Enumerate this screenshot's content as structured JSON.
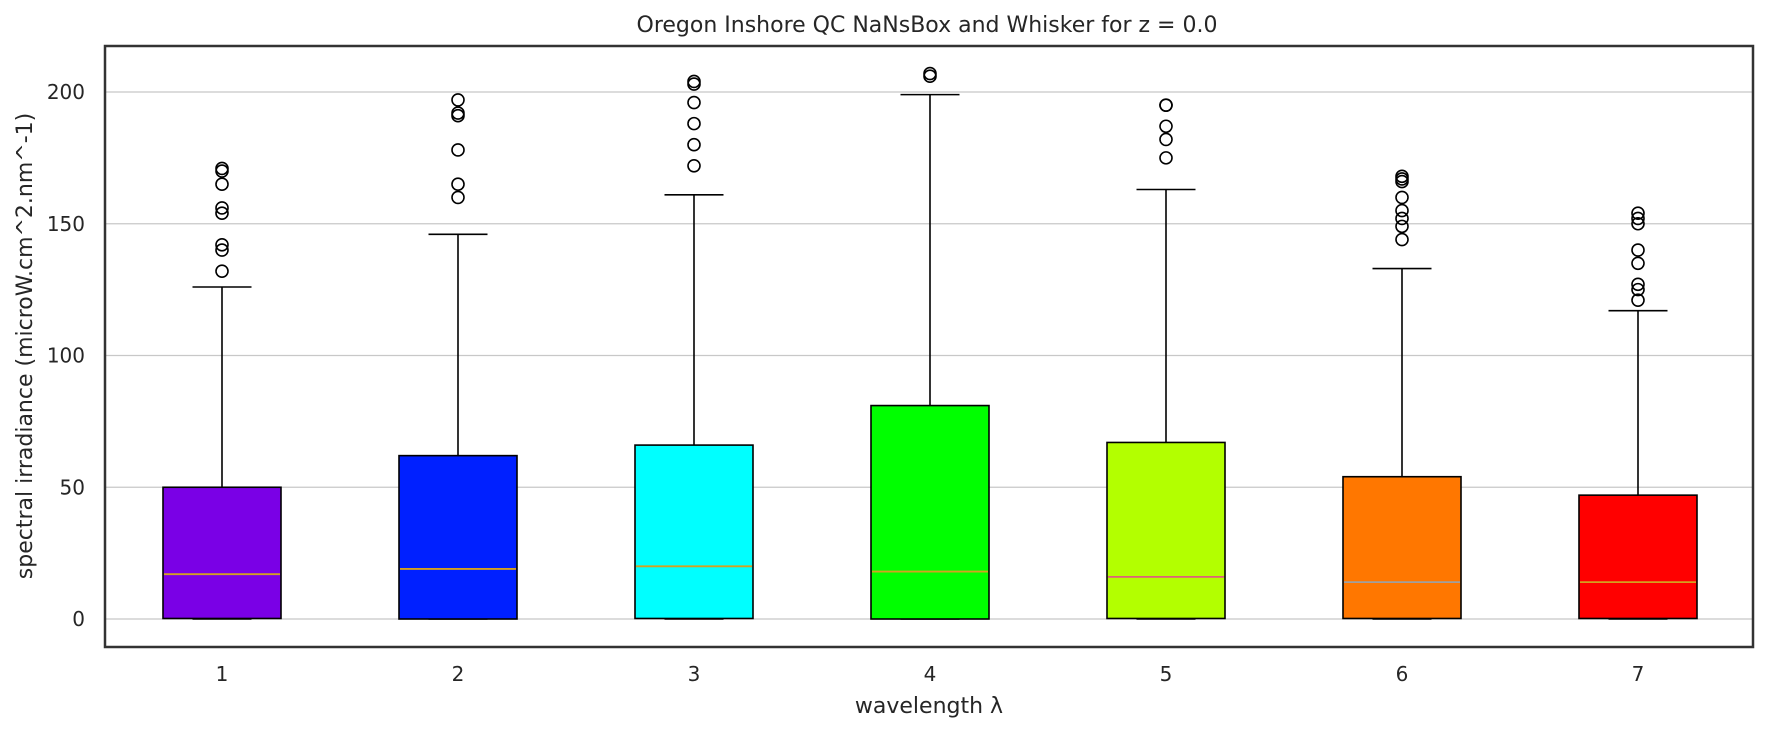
{
  "chart_data": {
    "type": "box",
    "title": "Oregon Inshore QC NaNsBox and Whisker for z = 0.0",
    "xlabel": "wavelength λ",
    "ylabel": "spectral irradiance (microW.cm^2.nm^-1)",
    "ylim": [
      -10,
      217
    ],
    "yticks": [
      0,
      50,
      100,
      150,
      200
    ],
    "ytick_labels": [
      "0",
      "50",
      "100",
      "150",
      "200"
    ],
    "grid": "horizontal",
    "categories": [
      "1",
      "2",
      "3",
      "4",
      "5",
      "6",
      "7"
    ],
    "boxes": [
      {
        "label": "1",
        "whislo": 0,
        "q1": 0.2,
        "median": 17,
        "q3": 50,
        "whishi": 126,
        "fliers": [
          132,
          140,
          142,
          154,
          156,
          165,
          170,
          171
        ],
        "color": "#7a00e6",
        "median_color": "#d4a020"
      },
      {
        "label": "2",
        "whislo": 0,
        "q1": 0,
        "median": 19,
        "q3": 62,
        "whishi": 146,
        "fliers": [
          160,
          165,
          178,
          191,
          192,
          197
        ],
        "color": "#0020ff",
        "median_color": "#d4a020"
      },
      {
        "label": "3",
        "whislo": 0,
        "q1": 0.2,
        "median": 20,
        "q3": 66,
        "whishi": 161,
        "fliers": [
          172,
          180,
          188,
          196,
          203,
          204
        ],
        "color": "#00ffff",
        "median_color": "#d4a020"
      },
      {
        "label": "4",
        "whislo": 0,
        "q1": 0,
        "median": 18,
        "q3": 81,
        "whishi": 199,
        "fliers": [
          206,
          207
        ],
        "color": "#00ff00",
        "median_color": "#d4a020"
      },
      {
        "label": "5",
        "whislo": 0,
        "q1": 0.2,
        "median": 16,
        "q3": 67,
        "whishi": 163,
        "fliers": [
          175,
          182,
          187,
          195,
          195
        ],
        "color": "#b3ff00",
        "median_color": "#e0607a"
      },
      {
        "label": "6",
        "whislo": 0,
        "q1": 0.2,
        "median": 14,
        "q3": 54,
        "whishi": 133,
        "fliers": [
          144,
          149,
          152,
          155,
          160,
          166,
          167,
          168
        ],
        "color": "#ff7700",
        "median_color": "#a0a0a0"
      },
      {
        "label": "7",
        "whislo": 0,
        "q1": 0.2,
        "median": 14,
        "q3": 47,
        "whishi": 117,
        "fliers": [
          121,
          125,
          127,
          135,
          140,
          150,
          152,
          154
        ],
        "color": "#ff0000",
        "median_color": "#d4a020"
      }
    ]
  }
}
